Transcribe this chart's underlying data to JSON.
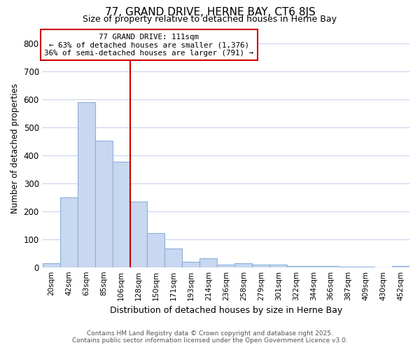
{
  "title": "77, GRAND DRIVE, HERNE BAY, CT6 8JS",
  "subtitle": "Size of property relative to detached houses in Herne Bay",
  "xlabel": "Distribution of detached houses by size in Herne Bay",
  "ylabel": "Number of detached properties",
  "footnote1": "Contains HM Land Registry data © Crown copyright and database right 2025.",
  "footnote2": "Contains public sector information licensed under the Open Government Licence v3.0.",
  "bin_labels": [
    "20sqm",
    "42sqm",
    "63sqm",
    "85sqm",
    "106sqm",
    "128sqm",
    "150sqm",
    "171sqm",
    "193sqm",
    "214sqm",
    "236sqm",
    "258sqm",
    "279sqm",
    "301sqm",
    "322sqm",
    "344sqm",
    "366sqm",
    "387sqm",
    "409sqm",
    "430sqm",
    "452sqm"
  ],
  "bin_values": [
    15,
    250,
    590,
    453,
    378,
    235,
    122,
    68,
    20,
    32,
    10,
    13,
    8,
    10,
    5,
    3,
    3,
    2,
    1,
    0,
    5
  ],
  "bar_color": "#c8d8f0",
  "bar_edge_color": "#8ab0d8",
  "vline_x_index": 5,
  "vline_color": "#cc0000",
  "annotation_line1": "77 GRAND DRIVE: 111sqm",
  "annotation_line2": "← 63% of detached houses are smaller (1,376)",
  "annotation_line3": "36% of semi-detached houses are larger (791) →",
  "ylim": [
    0,
    850
  ],
  "yticks": [
    0,
    100,
    200,
    300,
    400,
    500,
    600,
    700,
    800
  ],
  "background_color": "#ffffff",
  "plot_bg_color": "#ffffff",
  "grid_color": "#c8d4ec"
}
